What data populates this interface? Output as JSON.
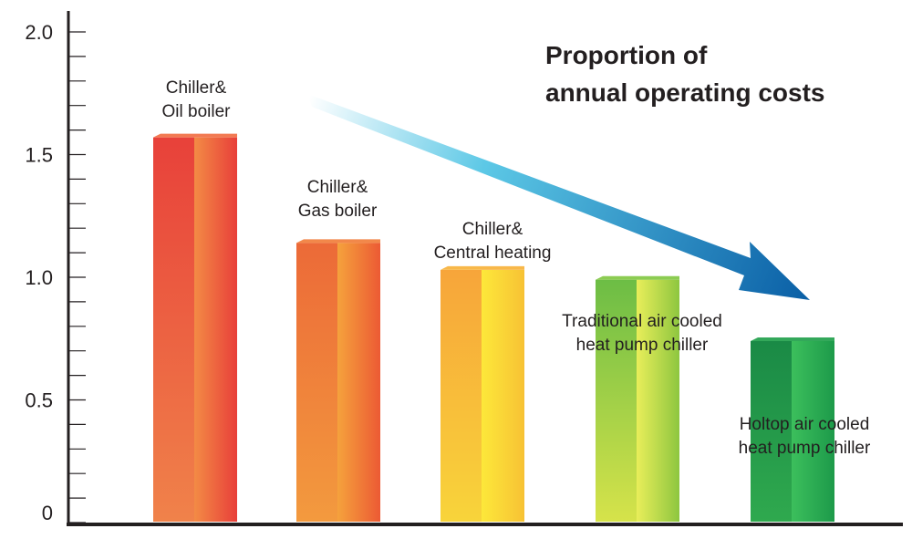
{
  "chart_data": {
    "type": "bar",
    "title": [
      "Proportion of",
      "annual operating costs"
    ],
    "xlabel": "",
    "ylabel": "",
    "ylim": [
      0,
      2.0
    ],
    "yticks": [
      {
        "value": 0,
        "label": "0"
      },
      {
        "value": 0.5,
        "label": "0.5"
      },
      {
        "value": 1.0,
        "label": "1.0"
      },
      {
        "value": 1.5,
        "label": "1.5"
      },
      {
        "value": 2.0,
        "label": "2.0"
      }
    ],
    "minor_tick_step": 0.1,
    "grid": false,
    "legend": "none",
    "categories": [
      [
        "Chiller&",
        "Oil boiler"
      ],
      [
        "Chiller&",
        "Gas boiler"
      ],
      [
        "Chiller&",
        "Central heating"
      ],
      [
        "Traditional air cooled",
        "heat pump chiller"
      ],
      [
        "Holtop air cooled",
        "heat pump chiller"
      ]
    ],
    "values": [
      1.57,
      1.14,
      1.03,
      0.99,
      0.74
    ],
    "colors": [
      {
        "left_top": "#e8413a",
        "left_bottom": "#f0824a",
        "right_top": "#f38b45",
        "right_bottom": "#e83f3a",
        "cap": "#f27a52"
      },
      {
        "left_top": "#ec6a38",
        "left_bottom": "#f39a3e",
        "right_top": "#f5a23c",
        "right_bottom": "#ec5a34",
        "cap": "#f2884a"
      },
      {
        "left_top": "#f7a53a",
        "left_bottom": "#f8d43a",
        "right_top": "#fde83a",
        "right_bottom": "#f7c234",
        "cap": "#f8b84a"
      },
      {
        "left_top": "#6cbd45",
        "left_bottom": "#d6e34a",
        "right_top": "#e9ee5a",
        "right_bottom": "#8dc63f",
        "cap": "#8ccc52"
      },
      {
        "left_top": "#1a8a46",
        "left_bottom": "#2fa94e",
        "right_top": "#3cbf5c",
        "right_bottom": "#1d9a4a",
        "cap": "#33a85a"
      }
    ],
    "arrow_colors": {
      "start": "#ffffff",
      "mid": "#5cc8e6",
      "end": "#0a5fa6"
    }
  }
}
